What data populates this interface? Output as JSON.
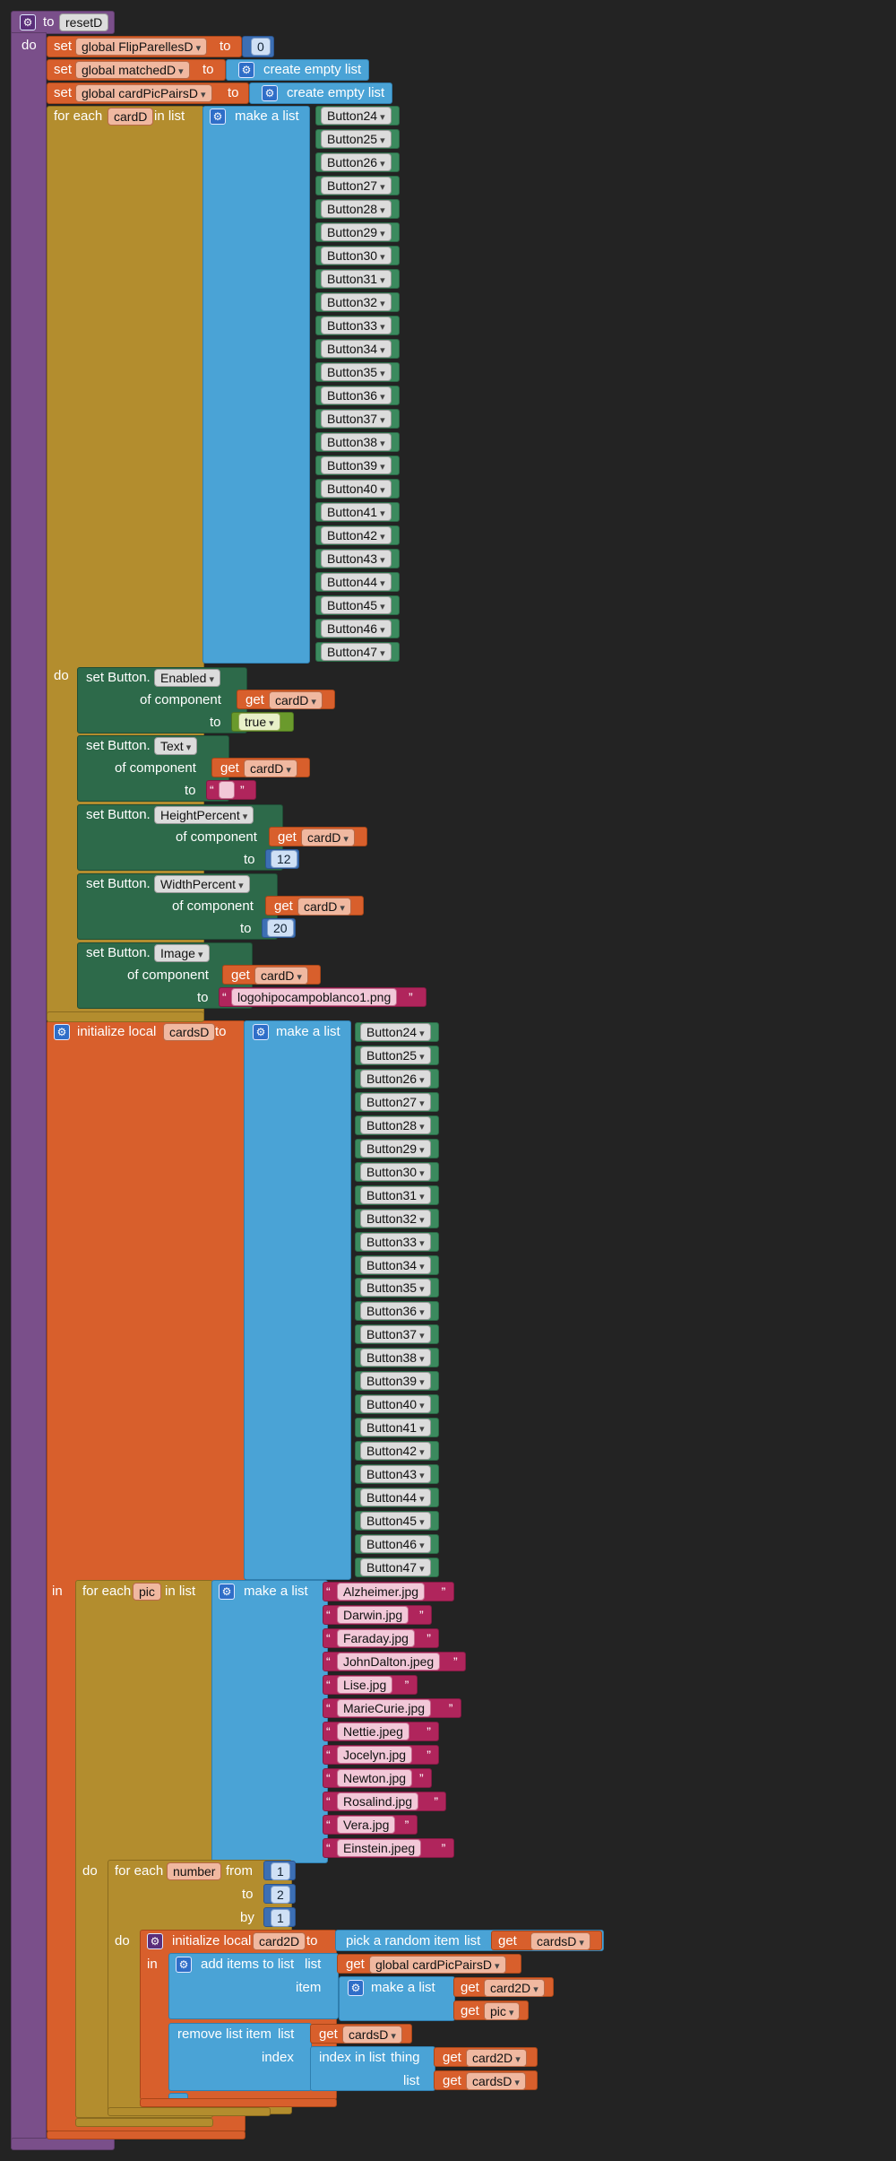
{
  "procedure": {
    "keyword": "to",
    "name": "resetD",
    "do": "do"
  },
  "set1": {
    "set": "set",
    "var": "global FlipParellesD",
    "to": "to",
    "value": "0"
  },
  "set2": {
    "set": "set",
    "var": "global matchedD",
    "to": "to",
    "value": "create empty list"
  },
  "set3": {
    "set": "set",
    "var": "global cardPicPairsD",
    "to": "to",
    "value": "create empty list"
  },
  "foreach1": {
    "label": "for each",
    "var": "cardD",
    "in_list": "in list",
    "make_list": "make a list",
    "do": "do"
  },
  "buttons": [
    "Button24",
    "Button25",
    "Button26",
    "Button27",
    "Button28",
    "Button29",
    "Button30",
    "Button31",
    "Button32",
    "Button33",
    "Button34",
    "Button35",
    "Button36",
    "Button37",
    "Button38",
    "Button39",
    "Button40",
    "Button41",
    "Button42",
    "Button43",
    "Button44",
    "Button45",
    "Button46",
    "Button47"
  ],
  "setters": [
    {
      "set": "set Button.",
      "prop": "Enabled",
      "of": "of component",
      "get": "get",
      "var": "cardD",
      "to": "to",
      "value": "true"
    },
    {
      "set": "set Button.",
      "prop": "Text",
      "of": "of component",
      "get": "get",
      "var": "cardD",
      "to": "to",
      "value": " "
    },
    {
      "set": "set Button.",
      "prop": "HeightPercent",
      "of": "of component",
      "get": "get",
      "var": "cardD",
      "to": "to",
      "value": "12"
    },
    {
      "set": "set Button.",
      "prop": "WidthPercent",
      "of": "of component",
      "get": "get",
      "var": "cardD",
      "to": "to",
      "value": "20"
    },
    {
      "set": "set Button.",
      "prop": "Image",
      "of": "of component",
      "get": "get",
      "var": "cardD",
      "to": "to",
      "value": "logohipocampoblanco1.png"
    }
  ],
  "init1": {
    "label": "initialize local",
    "var": "cardsD",
    "to": "to",
    "make_list": "make a list",
    "in": "in"
  },
  "foreach2": {
    "label": "for each",
    "var": "pic",
    "in_list": "in list",
    "make_list": "make a list",
    "do": "do"
  },
  "pics": [
    "Alzheimer.jpg",
    "Darwin.jpg",
    "Faraday.jpg",
    "JohnDalton.jpeg",
    "Lise.jpg",
    "MarieCurie.jpg",
    "Nettie.jpeg",
    "Jocelyn.jpg",
    "Newton.jpg",
    "Rosalind.jpg",
    "Vera.jpg",
    "Einstein.jpeg"
  ],
  "fornum": {
    "label": "for each",
    "var": "number",
    "from": "from",
    "from_val": "1",
    "to": "to",
    "to_val": "2",
    "by": "by",
    "by_val": "1",
    "do": "do"
  },
  "init2": {
    "label": "initialize local",
    "var": "card2D",
    "to": "to",
    "pick": "pick a random item",
    "list": "list",
    "get": "get",
    "list_var": "cardsD",
    "in": "in"
  },
  "additems": {
    "label": "add items to list",
    "list": "list",
    "get": "get",
    "list_var": "global cardPicPairsD",
    "item": "item",
    "make_list": "make a list",
    "get1": "get",
    "v1": "card2D",
    "get2": "get",
    "v2": "pic"
  },
  "remove": {
    "label": "remove list item",
    "list": "list",
    "get": "get",
    "list_var": "cardsD",
    "index": "index",
    "index_in": "index in list",
    "thing": "thing",
    "get3": "get",
    "v3": "card2D",
    "list2": "list",
    "get4": "get",
    "v4": "cardsD"
  },
  "quote": "“",
  "quote_close": "”",
  "gear_icon": "gear-icon"
}
